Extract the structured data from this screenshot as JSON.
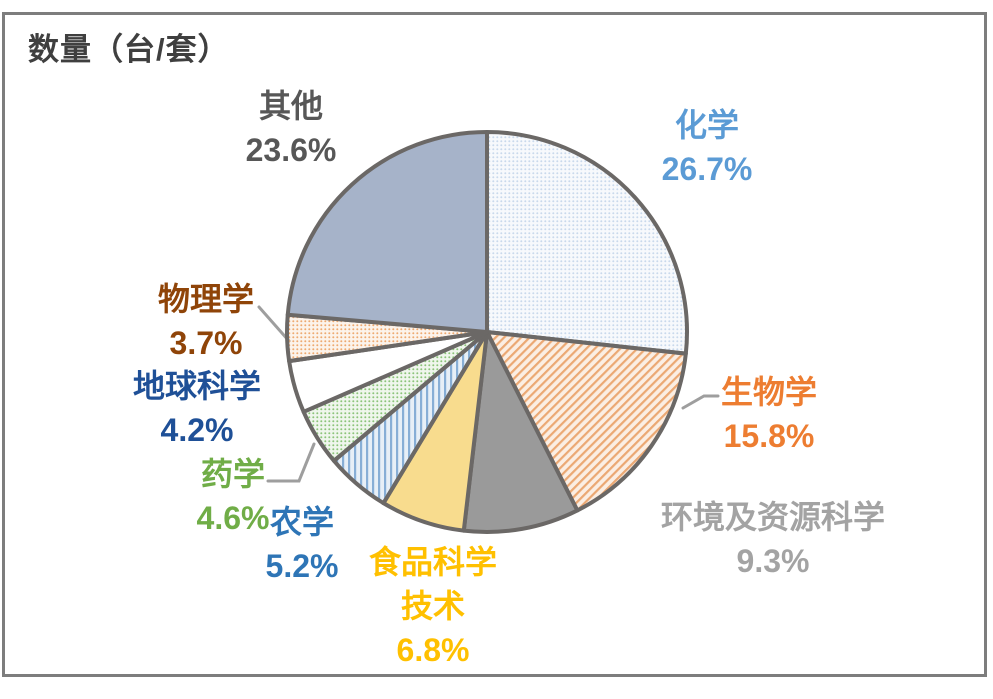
{
  "frame": {
    "border_color": "#7d7d7d",
    "background": "#ffffff"
  },
  "chart_data": {
    "type": "pie",
    "title": "数量（台/套）",
    "title_color": "#3f3f3f",
    "direction": "clockwise",
    "start_angle_deg": 0,
    "stroke_color": "#6b6866",
    "leader_line_color": "#9e9e9e",
    "legend_position": "none",
    "slices": [
      {
        "name": "chemistry",
        "label": "化学",
        "value": 26.7,
        "pct": "26.7%",
        "label_color": "#5b9bd5",
        "fill": "#c9d9ec",
        "pattern": "fine-dots"
      },
      {
        "name": "biology",
        "label": "生物学",
        "value": 15.8,
        "pct": "15.8%",
        "label_color": "#ed7d31",
        "fill": "#eba873",
        "pattern": "diagonal-hatch"
      },
      {
        "name": "environment-resource-science",
        "label": "环境及资源科学",
        "value": 9.3,
        "pct": "9.3%",
        "label_color": "#a3a3a3",
        "fill": "#9a9a9a",
        "pattern": "solid"
      },
      {
        "name": "food-science-technology",
        "label": "食品科学技术",
        "value": 6.8,
        "pct": "6.8%",
        "label_color": "#ffc000",
        "fill": "#f8dc8e",
        "pattern": "solid"
      },
      {
        "name": "agronomy",
        "label": "农学",
        "value": 5.2,
        "pct": "5.2%",
        "label_color": "#2e75b6",
        "fill": "#87aed6",
        "pattern": "vertical-stripes"
      },
      {
        "name": "pharmacy",
        "label": "药学",
        "value": 4.6,
        "pct": "4.6%",
        "label_color": "#70ad47",
        "fill": "#8cc47a",
        "pattern": "fine-dots"
      },
      {
        "name": "earth-science",
        "label": "地球科学",
        "value": 4.2,
        "pct": "4.2%",
        "label_color": "#1f5097",
        "fill": "#ffffff",
        "pattern": "solid"
      },
      {
        "name": "physics",
        "label": "物理学",
        "value": 3.7,
        "pct": "3.7%",
        "label_color": "#8f4408",
        "fill": "#edaa72",
        "pattern": "fine-dots"
      },
      {
        "name": "other",
        "label": "其他",
        "value": 23.6,
        "pct": "23.6%",
        "label_color": "#575757",
        "fill": "#a6b3c9",
        "pattern": "solid"
      }
    ]
  }
}
